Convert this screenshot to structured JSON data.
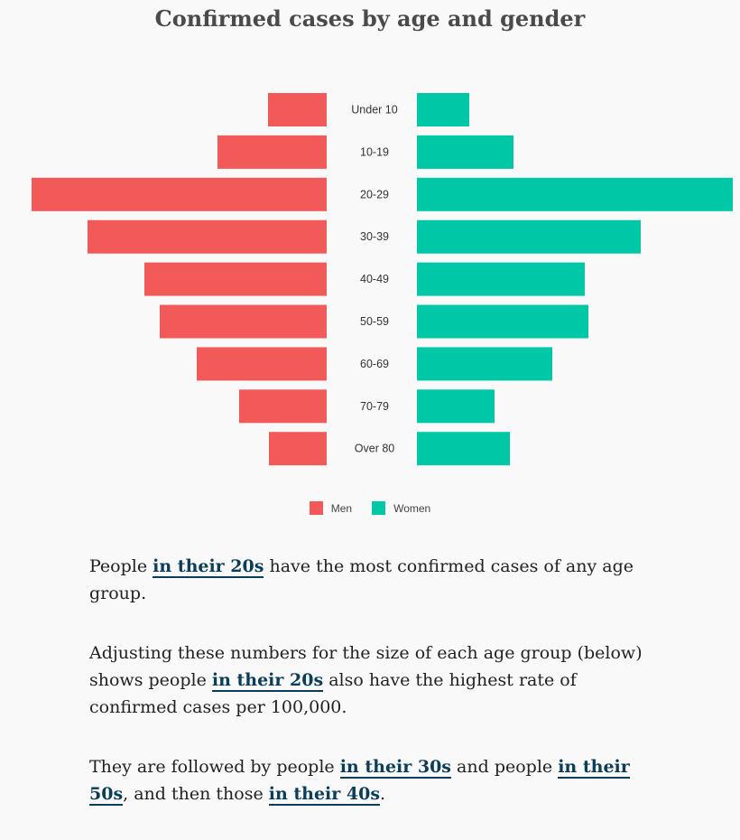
{
  "chart_data": {
    "type": "bar",
    "title": "Confirmed cases by age and gender",
    "categories": [
      "Under 10",
      "10-19",
      "20-29",
      "30-39",
      "40-49",
      "50-59",
      "60-69",
      "70-79",
      "Over 80"
    ],
    "series": [
      {
        "name": "Men",
        "color": "#f25a5a",
        "values": [
          65,
          121,
          327,
          265,
          202,
          185,
          144,
          97,
          64
        ]
      },
      {
        "name": "Women",
        "color": "#00c7a6",
        "values": [
          58,
          107,
          350,
          248,
          186,
          190,
          150,
          86,
          103
        ]
      }
    ],
    "xlim": [
      0,
      350
    ],
    "grid": false,
    "legend_position": "bottom-center"
  },
  "story": {
    "p1": {
      "before": "People ",
      "link": "in their 20s",
      "after": " have the most confirmed cases of any age group."
    },
    "p2": {
      "before": "Adjusting these numbers for the size of each age group (below) shows people ",
      "link": "in their 20s",
      "after": " also have the highest rate of confirmed cases per 100,000."
    },
    "p3": {
      "before": "They are followed by people ",
      "link1": "in their 30s",
      "mid1": " and people ",
      "link2": "in their 50s",
      "mid2": ", and then those ",
      "link3": "in their 40s",
      "after": "."
    }
  }
}
